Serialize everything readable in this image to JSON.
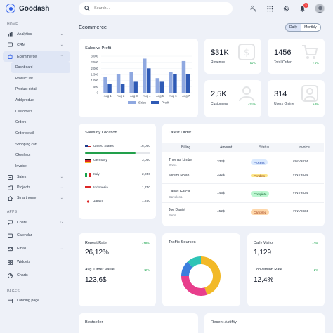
{
  "app": {
    "name": "Goodash"
  },
  "search": {
    "placeholder": "Search..."
  },
  "topbar": {
    "notifications": "3"
  },
  "sidebar": {
    "sec_home": "HOME",
    "analytics": "Analytics",
    "crm": "CRM",
    "ecommerce": "Ecommerce",
    "ecom_sub": [
      "Dashboard",
      "Product list",
      "Product detail",
      "Add product",
      "Customers",
      "Orders",
      "Order detail",
      "Shopping cart",
      "Checkout",
      "Invoice"
    ],
    "sales": "Sales",
    "projects": "Projects",
    "smarthome": "Smarthome",
    "sec_apps": "APPS",
    "chats": "Chats",
    "chats_count": "12",
    "calendar": "Calendar",
    "email": "Email",
    "widgets": "Widgets",
    "charts": "Charts",
    "sec_pages": "PAGES",
    "landing": "Landing page"
  },
  "page": {
    "title": "Ecommerce",
    "range_daily": "Daily",
    "range_monthly": "Monthly"
  },
  "sales_vs_profit": {
    "title": "Sales vs Profit",
    "legend_sales": "Sales",
    "legend_profit": "Profit"
  },
  "chart_data": {
    "type": "bar",
    "categories": [
      "Aug 1",
      "Aug 2",
      "Aug 3",
      "Aug 4",
      "Aug 5",
      "Aug 6",
      "Aug 7"
    ],
    "y_ticks": [
      "0",
      "500",
      "1,000",
      "1,500",
      "2,000",
      "2,500",
      "3,000"
    ],
    "ylim": [
      0,
      3000
    ],
    "series": [
      {
        "name": "Sales",
        "color": "#8fa8e0",
        "values": [
          1300,
          1500,
          1700,
          2800,
          1200,
          1700,
          2600
        ]
      },
      {
        "name": "Profit",
        "color": "#2f5ab5",
        "values": [
          700,
          700,
          900,
          2000,
          900,
          1500,
          1500
        ]
      }
    ]
  },
  "stats": [
    {
      "value": "$31K",
      "label": "Revenue",
      "pct": "+11%"
    },
    {
      "value": "1456",
      "label": "Total Order",
      "pct": "+5%"
    },
    {
      "value": "2,5K",
      "label": "Customers",
      "pct": "+21%"
    },
    {
      "value": "314",
      "label": "Users Online",
      "pct": "+8%"
    }
  ],
  "sales_by_location": {
    "title": "Sales by Location",
    "rows": [
      {
        "name": "United States",
        "value": "16,050",
        "fraction": 0.32
      },
      {
        "name": "Germany",
        "value": "3,050",
        "fraction": 0
      },
      {
        "name": "Italy",
        "value": "2,050",
        "fraction": 0
      },
      {
        "name": "Indonesia",
        "value": "1,750",
        "fraction": 0
      },
      {
        "name": "Japan",
        "value": "1,250",
        "fraction": 0
      }
    ]
  },
  "latest_order": {
    "title": "Latest Order",
    "headers": [
      "Billing",
      "Amount",
      "Status",
      "Invoice"
    ],
    "rows": [
      {
        "name": "Thomas Limber",
        "city": "Roma",
        "amount": "332$",
        "status": "Process",
        "invoice": "#INV9834"
      },
      {
        "name": "Jeremi Nolan",
        "city": "Roma",
        "amount": "332$",
        "status": "Pending",
        "invoice": "#INV9834"
      },
      {
        "name": "Carlos Garcia",
        "city": "Barcelona",
        "amount": "145$",
        "status": "Complete",
        "invoice": "#INV9834"
      },
      {
        "name": "Joe Daniel",
        "city": "Berlin",
        "amount": "452$",
        "status": "Canceled",
        "invoice": "#INV9834"
      }
    ]
  },
  "repeat_card": {
    "repeat_label": "Repeat Rate",
    "repeat_value": "26,12%",
    "repeat_pct": "+18%",
    "aov_label": "Avg. Order Value",
    "aov_value": "123,6$",
    "aov_pct": "+2%"
  },
  "traffic": {
    "title": "Traffic Sources",
    "slices": [
      {
        "value": 45,
        "color": "#f2b928"
      },
      {
        "value": 30,
        "color": "#e83e8c"
      },
      {
        "value": 13,
        "color": "#3b7ddd"
      },
      {
        "value": 12,
        "color": "#2ec4b6"
      }
    ]
  },
  "visitor_card": {
    "daily_label": "Daily Visitor",
    "daily_value": "1,129",
    "daily_pct": "+2%",
    "conv_label": "Conversion Rate",
    "conv_value": "12,4%",
    "conv_pct": "+2%"
  },
  "bestseller": {
    "title": "Bestseller"
  },
  "recent": {
    "title": "Recent Actifity"
  }
}
